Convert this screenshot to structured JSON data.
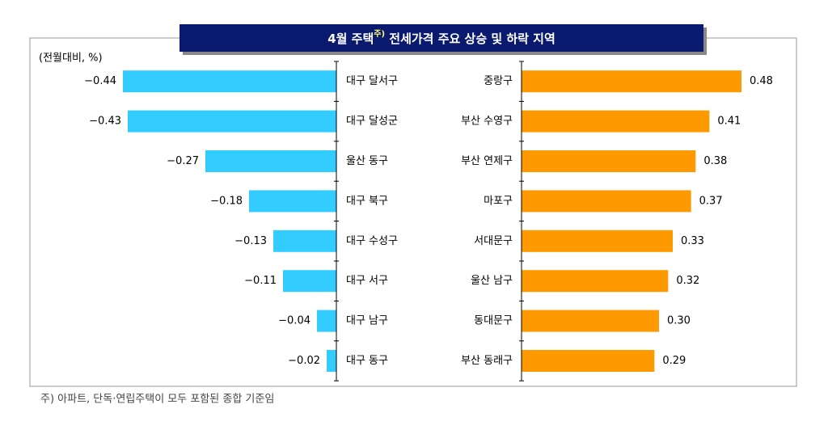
{
  "title": {
    "before": "4월 주택",
    "sup": "주)",
    "after": " 전세가격 주요 상승 및 하락 지역"
  },
  "unit_label": "(전월대비, %)",
  "footnote": "주) 아파트, 단독·연립주택이 모두 포함된 종합 기준임",
  "chart_data": [
    {
      "type": "bar",
      "orientation": "horizontal",
      "color": "#33ccff",
      "xlim": [
        -0.6,
        0
      ],
      "categories": [
        "대구 달서구",
        "대구 달성군",
        "울산 동구",
        "대구 북구",
        "대구 수성구",
        "대구 서구",
        "대구 남구",
        "대구 동구"
      ],
      "values": [
        -0.44,
        -0.43,
        -0.27,
        -0.18,
        -0.13,
        -0.11,
        -0.04,
        -0.02
      ],
      "value_labels": [
        "−0.44",
        "−0.43",
        "−0.27",
        "−0.18",
        "−0.13",
        "−0.11",
        "−0.04",
        "−0.02"
      ]
    },
    {
      "type": "bar",
      "orientation": "horizontal",
      "color": "#ff9900",
      "xlim": [
        0,
        0.6
      ],
      "categories": [
        "중랑구",
        "부산 수영구",
        "부산 연제구",
        "마포구",
        "서대문구",
        "울산 남구",
        "동대문구",
        "부산 동래구"
      ],
      "values": [
        0.48,
        0.41,
        0.38,
        0.37,
        0.33,
        0.32,
        0.3,
        0.29
      ],
      "value_labels": [
        "0.48",
        "0.41",
        "0.38",
        "0.37",
        "0.33",
        "0.32",
        "0.30",
        "0.29"
      ]
    }
  ]
}
